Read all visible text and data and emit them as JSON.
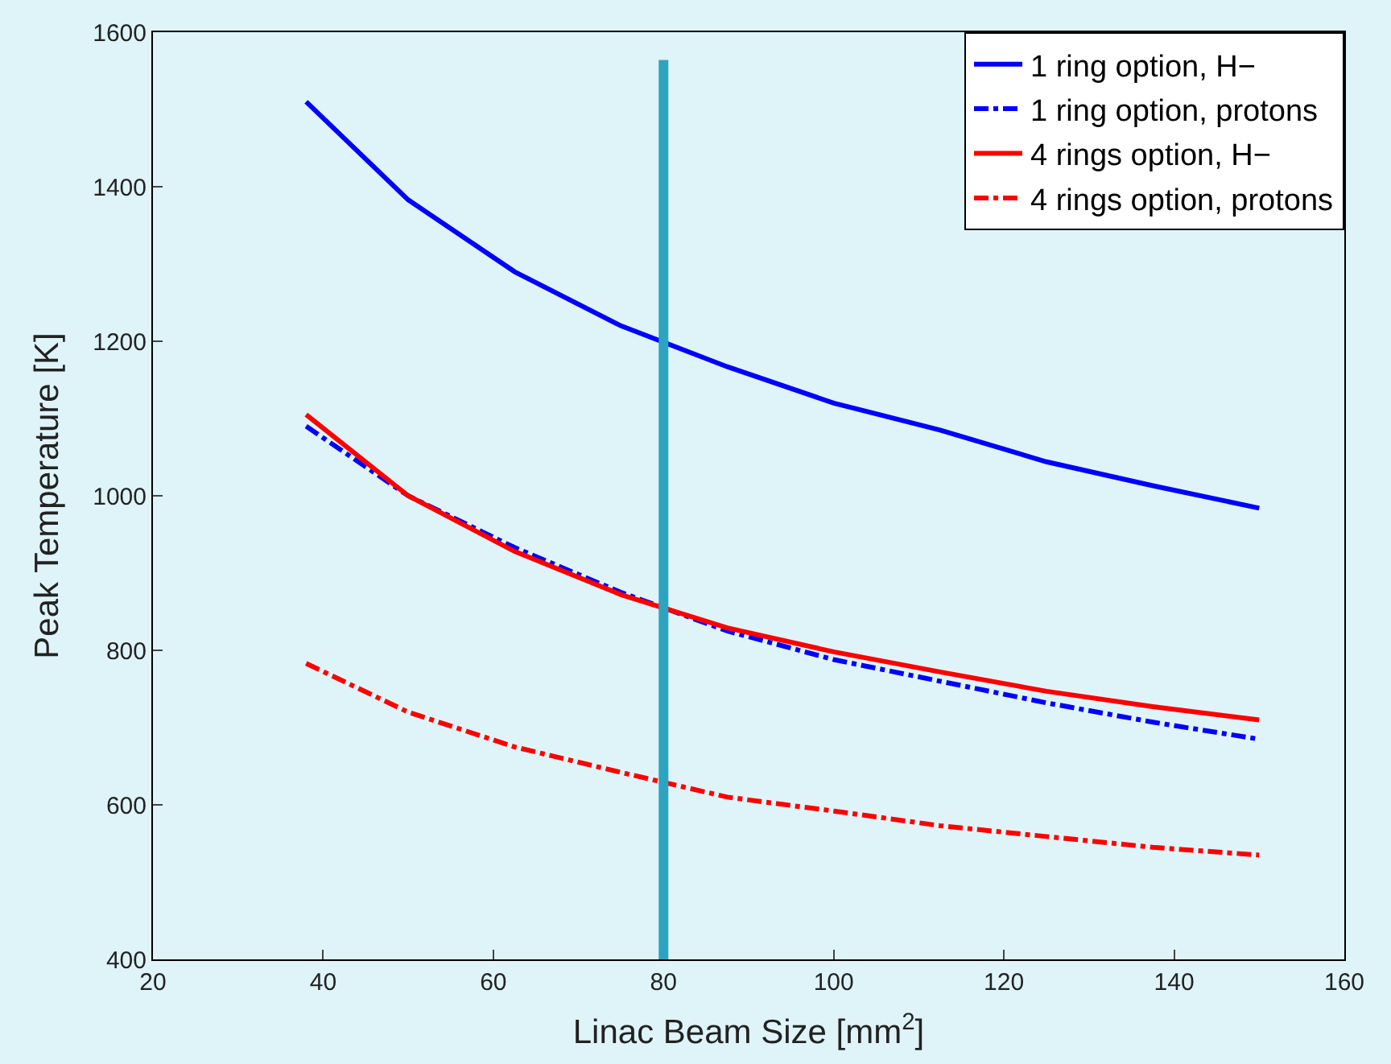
{
  "chart_data": {
    "type": "line",
    "xlabel": "Linac Beam Size [mm$^{2}$]",
    "ylabel": "Peak Temperature [K]",
    "x": [
      38,
      50,
      62.5,
      75,
      87.5,
      100,
      112.5,
      125,
      137.5,
      150
    ],
    "series": [
      {
        "name": "1 ring option, H−",
        "color": "#0000ff",
        "line_style": "solid",
        "values": [
          1510,
          1383,
          1290,
          1220,
          1167,
          1120,
          1085,
          1044,
          1013,
          984
        ]
      },
      {
        "name": "1 ring option, protons",
        "color": "#0000ff",
        "line_style": "dashdot",
        "values": [
          1090,
          1000,
          933,
          875,
          825,
          788,
          760,
          732,
          707,
          685
        ]
      },
      {
        "name": "4 rings option, H−",
        "color": "#ff0000",
        "line_style": "solid",
        "values": [
          1105,
          1000,
          928,
          872,
          829,
          798,
          772,
          747,
          727,
          710
        ]
      },
      {
        "name": "4 rings option, protons",
        "color": "#ff0000",
        "line_style": "dashdot",
        "values": [
          783,
          720,
          675,
          642,
          610,
          592,
          573,
          559,
          545,
          535
        ]
      }
    ],
    "xlim": [
      20,
      160
    ],
    "xticks": [
      20,
      40,
      60,
      80,
      100,
      120,
      140,
      160
    ],
    "ylim": [
      400,
      1600
    ],
    "yticks": [
      400,
      600,
      800,
      1000,
      1200,
      1400,
      1600
    ],
    "ref_lines": [
      {
        "axis": "x",
        "value": 80,
        "color": "#2ca4bf"
      }
    ],
    "grid": false,
    "legend": "top right",
    "marker": "none"
  }
}
